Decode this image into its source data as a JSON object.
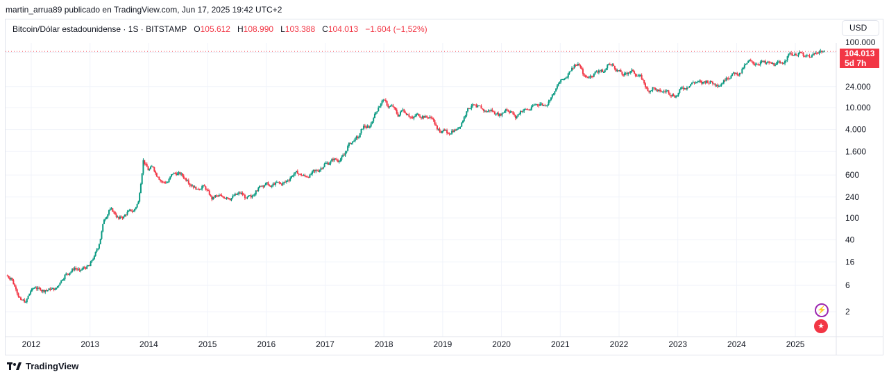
{
  "header": {
    "published": "martin_arrua89 publicado en TradingView.com, Jun 17, 2025 19:42 UTC+2"
  },
  "legend": {
    "symbol": "Bitcoin/Dólar estadounidense · 1S · BITSTAMP",
    "o_label": "O",
    "o": "105.612",
    "h_label": "H",
    "h": "108.990",
    "l_label": "L",
    "l": "103.388",
    "c_label": "C",
    "c": "104.013",
    "change": "−1.604 (−1,52%)"
  },
  "currency": "USD",
  "price_tag": {
    "price": "104.013",
    "countdown": "5d 7h"
  },
  "footer": {
    "logo": "TradingView"
  },
  "icons": [
    "lightning-icon",
    "us-flag-icon"
  ],
  "colors": {
    "up": "#089981",
    "down": "#f23645",
    "accent": "#9c27b0"
  },
  "chart_data": {
    "type": "candlestick",
    "title": "Bitcoin/Dólar estadounidense · 1S · BITSTAMP",
    "yscale": "log",
    "ylim": [
      1,
      130000
    ],
    "y_ticks": [
      {
        "v": 100000,
        "label": "100.000"
      },
      {
        "v": 24000,
        "label": "24.000"
      },
      {
        "v": 10000,
        "label": "10.000"
      },
      {
        "v": 4000,
        "label": "4.000"
      },
      {
        "v": 1600,
        "label": "1.600"
      },
      {
        "v": 600,
        "label": "600"
      },
      {
        "v": 240,
        "label": "240"
      },
      {
        "v": 100,
        "label": "100"
      },
      {
        "v": 40,
        "label": "40"
      },
      {
        "v": 16,
        "label": "16"
      },
      {
        "v": 6,
        "label": "6"
      },
      {
        "v": 2,
        "label": "2"
      }
    ],
    "x_ticks": [
      "2012",
      "2013",
      "2014",
      "2015",
      "2016",
      "2017",
      "2018",
      "2019",
      "2020",
      "2021",
      "2022",
      "2023",
      "2024",
      "2025"
    ],
    "start": "2011-08",
    "interval": "month (approx.)",
    "closes": [
      8.2,
      5.1,
      3.3,
      3.0,
      4.7,
      5.5,
      4.9,
      4.9,
      5.0,
      5.1,
      6.7,
      9.3,
      10.2,
      12.4,
      11.2,
      12.6,
      13.5,
      20.4,
      33.4,
      93,
      139,
      129,
      97,
      106,
      135,
      133,
      198,
      1120,
      732,
      830,
      550,
      450,
      445,
      627,
      640,
      585,
      480,
      387,
      338,
      378,
      320,
      217,
      254,
      244,
      236,
      230,
      263,
      284,
      230,
      236,
      314,
      378,
      430,
      368,
      437,
      416,
      448,
      531,
      673,
      624,
      573,
      608,
      700,
      742,
      963,
      970,
      1190,
      1080,
      1350,
      2300,
      2480,
      2875,
      4700,
      4340,
      6450,
      10000,
      13800,
      10200,
      10300,
      6900,
      9240,
      7500,
      6390,
      7730,
      7030,
      6630,
      6320,
      4040,
      3740,
      3460,
      3810,
      4100,
      5320,
      8570,
      10800,
      10090,
      9620,
      8300,
      9150,
      7570,
      7190,
      9350,
      8560,
      6420,
      8630,
      9450,
      9140,
      11350,
      11680,
      10780,
      13800,
      19700,
      28990,
      33100,
      45200,
      58800,
      57700,
      37300,
      35000,
      41500,
      47100,
      43800,
      61300,
      57000,
      46200,
      38500,
      43200,
      45500,
      37700,
      31800,
      19900,
      23300,
      20000,
      19400,
      20500,
      17200,
      16500,
      23100,
      23100,
      28500,
      29200,
      27200,
      30500,
      29200,
      25900,
      26900,
      34600,
      37700,
      42300,
      42600,
      61200,
      71300,
      60600,
      67500,
      62700,
      64600,
      58900,
      63300,
      70200,
      96400,
      93400,
      102400,
      84300,
      82500,
      94200,
      104600,
      104013
    ],
    "last_price": 104013
  }
}
